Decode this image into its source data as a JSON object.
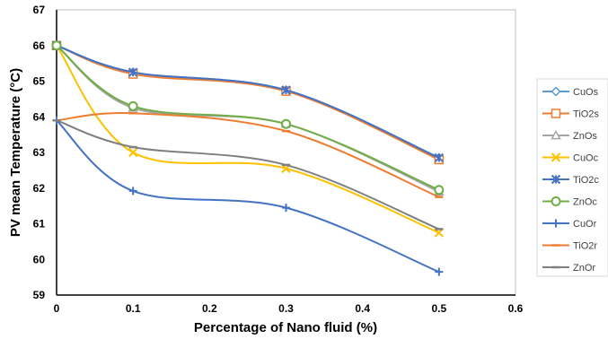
{
  "chart_data": {
    "type": "line",
    "xlabel": "Percentage of Nano fluid (%)",
    "ylabel": "PV mean Temperature (°C)",
    "xlim": [
      0,
      0.6
    ],
    "ylim": [
      59,
      67
    ],
    "xticks": [
      "0",
      "0.1",
      "0.2",
      "0.3",
      "0.4",
      "0.5",
      "0.6"
    ],
    "yticks": [
      "59",
      "60",
      "61",
      "62",
      "63",
      "64",
      "65",
      "66",
      "67"
    ],
    "grid": "none",
    "legend_position": "right",
    "x": [
      0,
      0.1,
      0.3,
      0.5
    ],
    "series": [
      {
        "name": "CuOs",
        "values": [
          66.0,
          65.25,
          64.75,
          62.85
        ],
        "color": "#5b9bd5",
        "marker": "diamond"
      },
      {
        "name": "TiO2s",
        "values": [
          66.0,
          65.2,
          64.72,
          62.8
        ],
        "color": "#ed7d31",
        "marker": "square"
      },
      {
        "name": "ZnOs",
        "values": [
          66.0,
          64.25,
          63.8,
          61.9
        ],
        "color": "#a5a5a5",
        "marker": "triangle"
      },
      {
        "name": "CuOc",
        "values": [
          66.0,
          63.0,
          62.55,
          60.75
        ],
        "color": "#ffc000",
        "marker": "x"
      },
      {
        "name": "TiO2c",
        "values": [
          66.0,
          65.25,
          64.75,
          62.85
        ],
        "color": "#4472c4",
        "marker": "star"
      },
      {
        "name": "ZnOc",
        "values": [
          66.0,
          64.3,
          63.8,
          61.95
        ],
        "color": "#70ad47",
        "marker": "circle"
      },
      {
        "name": "CuOr",
        "values": [
          63.9,
          61.92,
          61.45,
          59.65
        ],
        "color": "#4472c4",
        "marker": "plus"
      },
      {
        "name": "TiO2r",
        "values": [
          63.9,
          64.1,
          63.6,
          61.75
        ],
        "color": "#ed7d31",
        "marker": "dash"
      },
      {
        "name": "ZnOr",
        "values": [
          63.9,
          63.15,
          62.65,
          60.85
        ],
        "color": "#7f7f7f",
        "marker": "dash"
      }
    ]
  }
}
